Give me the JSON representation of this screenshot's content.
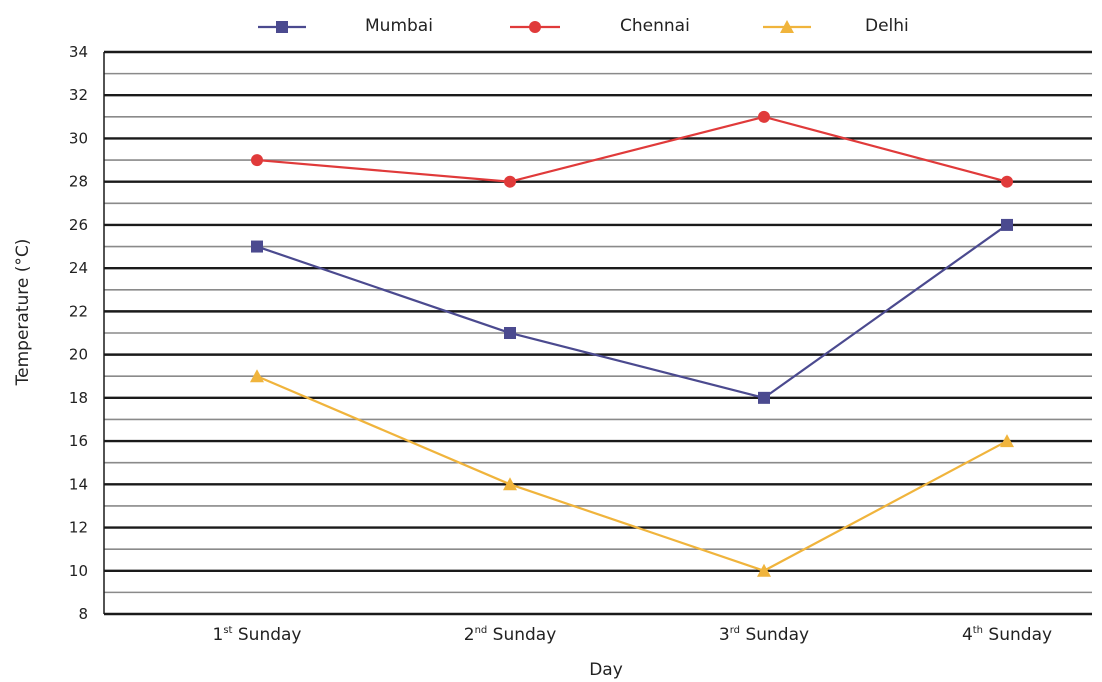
{
  "chart_data": {
    "type": "line",
    "categories": [
      "1st Sunday",
      "2nd Sunday",
      "3rd Sunday",
      "4th Sunday"
    ],
    "category_labels": [
      {
        "num": "1",
        "sup": "st",
        "rest": " Sunday"
      },
      {
        "num": "2",
        "sup": "nd",
        "rest": " Sunday"
      },
      {
        "num": "3",
        "sup": "rd",
        "rest": " Sunday"
      },
      {
        "num": "4",
        "sup": "th",
        "rest": " Sunday"
      }
    ],
    "series": [
      {
        "name": "Mumbai",
        "color": "#4b4a8f",
        "marker": "square",
        "values": [
          25,
          21,
          18,
          26
        ]
      },
      {
        "name": "Chennai",
        "color": "#e03a3a",
        "marker": "circle",
        "values": [
          29,
          28,
          31,
          28
        ]
      },
      {
        "name": "Delhi",
        "color": "#f0b43c",
        "marker": "triangle",
        "values": [
          19,
          14,
          10,
          16
        ]
      }
    ],
    "xlabel": "Day",
    "ylabel": "Temperature (°C)",
    "ylim": [
      8,
      34
    ],
    "yticks": [
      8,
      10,
      12,
      14,
      16,
      18,
      20,
      22,
      24,
      26,
      28,
      30,
      32,
      34
    ],
    "grid": true,
    "legend_position": "top-center"
  }
}
